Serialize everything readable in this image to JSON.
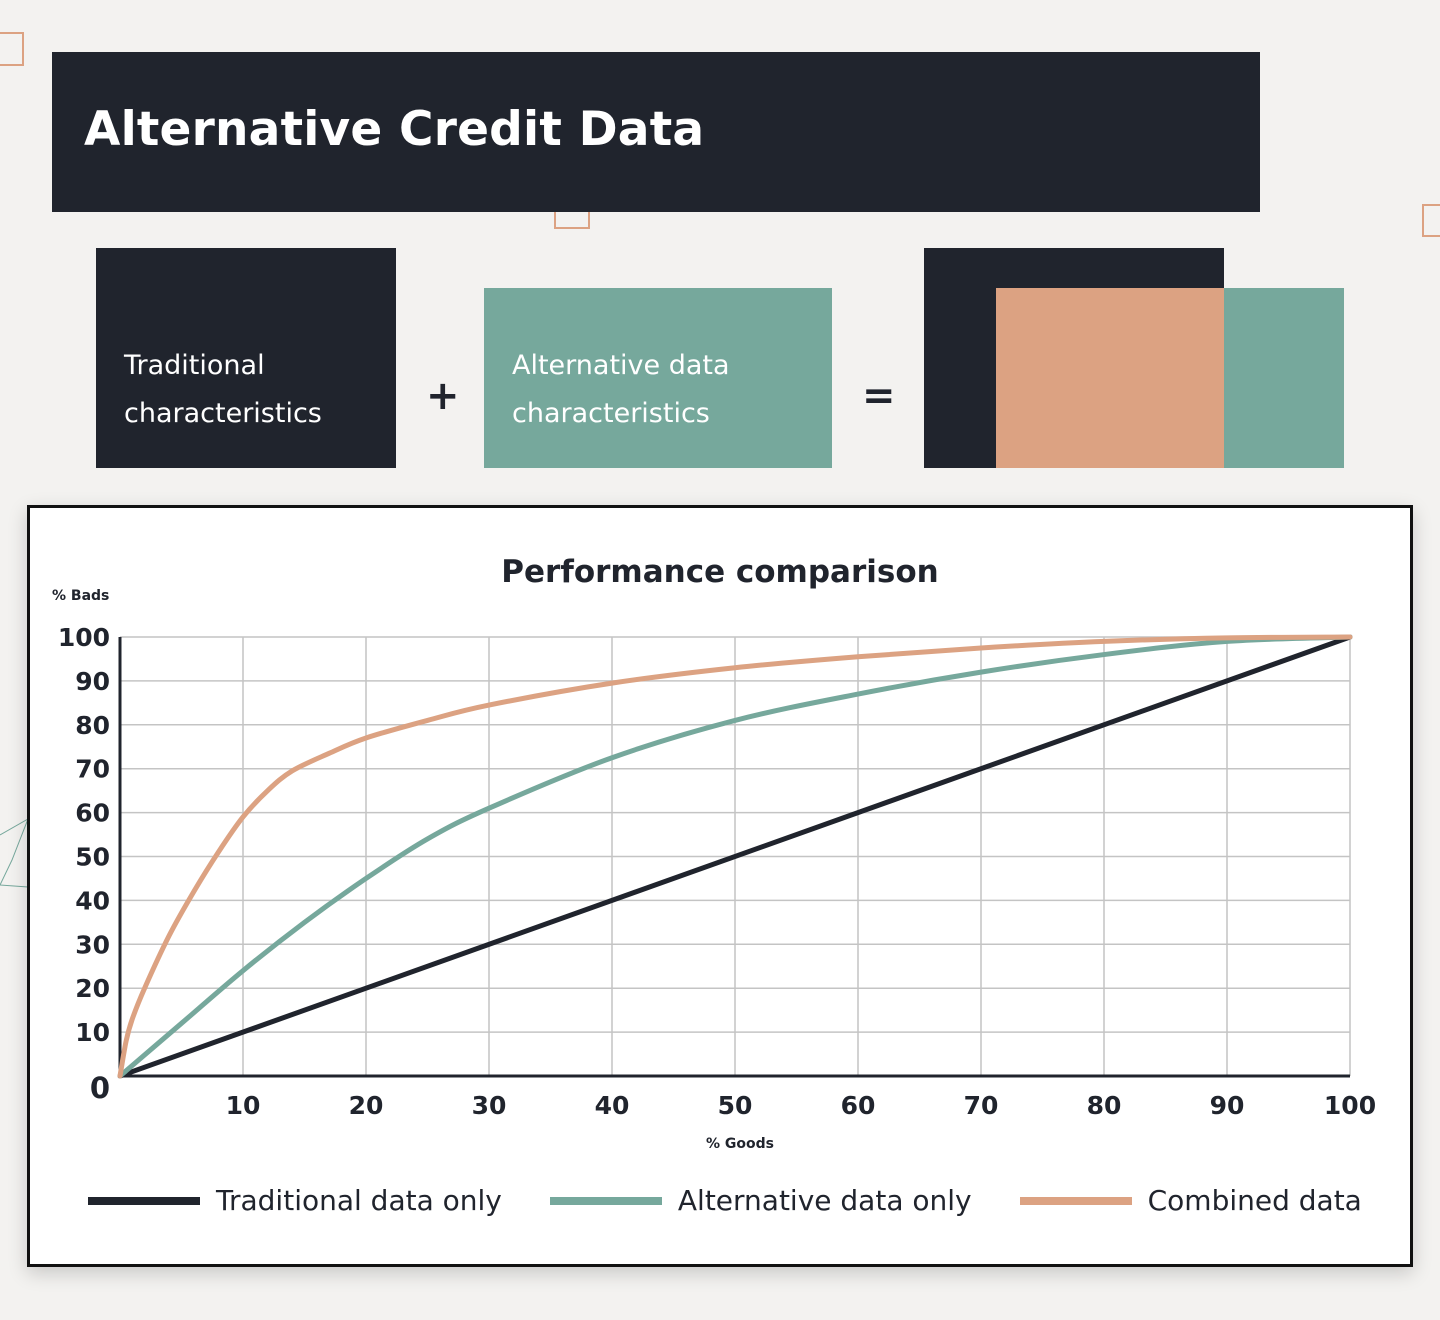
{
  "header": {
    "title": "Alternative Credit Data"
  },
  "equation": {
    "left_box": [
      "Traditional",
      "characteristics"
    ],
    "plus": "+",
    "middle_box": [
      "Alternative data",
      "characteristics"
    ],
    "equals": "="
  },
  "colors": {
    "dark": "#20242d",
    "teal": "#76a89c",
    "peach": "#dca282",
    "background": "#f3f2f0"
  },
  "chart_data": {
    "type": "line",
    "title": "Performance comparison",
    "xlabel": "% Goods",
    "ylabel": "% Bads",
    "xlim": [
      0,
      100
    ],
    "ylim": [
      0,
      100
    ],
    "x_ticks": [
      10,
      20,
      30,
      40,
      50,
      60,
      70,
      80,
      90,
      100
    ],
    "y_ticks": [
      0,
      10,
      20,
      30,
      40,
      50,
      60,
      70,
      80,
      90,
      100
    ],
    "grid": true,
    "legend_position": "bottom",
    "series": [
      {
        "name": "Traditional data only",
        "color": "#20242d",
        "points": [
          [
            0,
            0
          ],
          [
            100,
            100
          ]
        ]
      },
      {
        "name": "Alternative data only",
        "color": "#76a89c",
        "points": [
          [
            0,
            0
          ],
          [
            5,
            12
          ],
          [
            10,
            24
          ],
          [
            15,
            35
          ],
          [
            20,
            45
          ],
          [
            25,
            54
          ],
          [
            30,
            61
          ],
          [
            40,
            72.5
          ],
          [
            50,
            81
          ],
          [
            60,
            87
          ],
          [
            70,
            92
          ],
          [
            80,
            96
          ],
          [
            90,
            99
          ],
          [
            100,
            100
          ]
        ]
      },
      {
        "name": "Combined data",
        "color": "#dca282",
        "points": [
          [
            0,
            0
          ],
          [
            0.5,
            8
          ],
          [
            1,
            13
          ],
          [
            2,
            20
          ],
          [
            4,
            32
          ],
          [
            6,
            42
          ],
          [
            8,
            51
          ],
          [
            10,
            59
          ],
          [
            12,
            65
          ],
          [
            14,
            69.5
          ],
          [
            17,
            73.5
          ],
          [
            20,
            77
          ],
          [
            25,
            81
          ],
          [
            30,
            84.5
          ],
          [
            40,
            89.5
          ],
          [
            50,
            93
          ],
          [
            60,
            95.5
          ],
          [
            70,
            97.5
          ],
          [
            80,
            99
          ],
          [
            90,
            99.8
          ],
          [
            100,
            100
          ]
        ]
      }
    ]
  }
}
